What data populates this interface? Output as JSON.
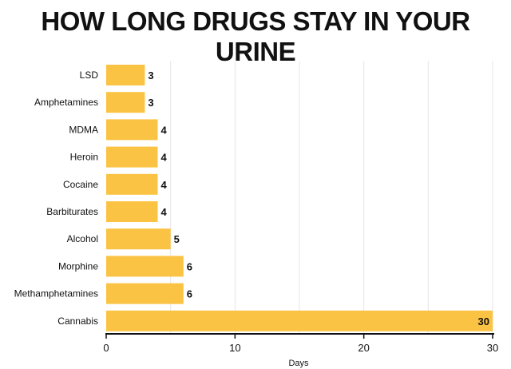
{
  "chart_data": {
    "type": "bar",
    "orientation": "horizontal",
    "title": "HOW LONG DRUGS STAY IN YOUR URINE",
    "xlabel": "Days",
    "ylabel": "",
    "categories": [
      "LSD",
      "Amphetamines",
      "MDMA",
      "Heroin",
      "Cocaine",
      "Barbiturates",
      "Alcohol",
      "Morphine",
      "Methamphetamines",
      "Cannabis"
    ],
    "values": [
      3,
      3,
      4,
      4,
      4,
      4,
      5,
      6,
      6,
      30
    ],
    "xlim": [
      0,
      30
    ],
    "xticks": [
      0,
      10,
      20,
      30
    ],
    "grid": "vertical",
    "data_labels": true,
    "bar_color": "#fbc344",
    "grid_color": "#e6e6e6",
    "axis_color": "#111111"
  }
}
